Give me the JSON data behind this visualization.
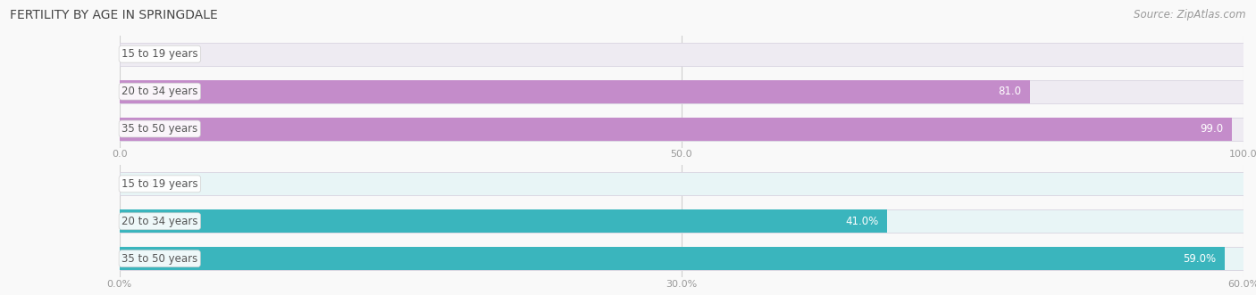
{
  "title": "FERTILITY BY AGE IN SPRINGDALE",
  "source": "Source: ZipAtlas.com",
  "chart1": {
    "categories": [
      "15 to 19 years",
      "20 to 34 years",
      "35 to 50 years"
    ],
    "values": [
      0.0,
      81.0,
      99.0
    ],
    "xlim": [
      0,
      100
    ],
    "xticks": [
      0.0,
      50.0,
      100.0
    ],
    "xtick_labels": [
      "0.0",
      "50.0",
      "100.0"
    ],
    "bar_color": "#c48cca",
    "bar_bg_color": "#eeebf2",
    "label_color_inside": "#ffffff",
    "label_color_outside": "#888888"
  },
  "chart2": {
    "categories": [
      "15 to 19 years",
      "20 to 34 years",
      "35 to 50 years"
    ],
    "values": [
      0.0,
      41.0,
      59.0
    ],
    "xlim": [
      0,
      60
    ],
    "xticks": [
      0.0,
      30.0,
      60.0
    ],
    "xtick_labels": [
      "0.0%",
      "30.0%",
      "60.0%"
    ],
    "bar_color": "#3ab5bd",
    "bar_bg_color": "#e8f5f6",
    "label_color_inside": "#ffffff",
    "label_color_outside": "#888888"
  },
  "title_fontsize": 10,
  "source_fontsize": 8.5,
  "label_fontsize": 8.5,
  "tick_fontsize": 8,
  "category_fontsize": 8.5,
  "bar_height": 0.62,
  "background_color": "#f9f9f9"
}
